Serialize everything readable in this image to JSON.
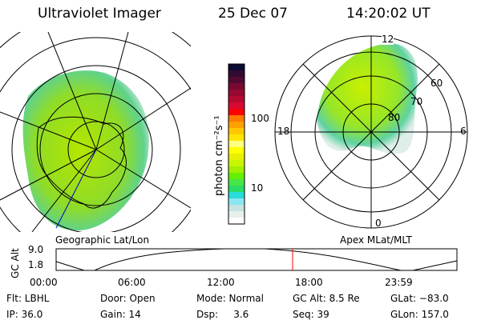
{
  "header": {
    "instrument": "Ultraviolet Imager",
    "date": "25 Dec 07",
    "time": "14:20:02 UT"
  },
  "colorbar": {
    "label": "photon cm⁻²s⁻¹",
    "ticks": [
      "100",
      "10"
    ],
    "colors": [
      "#0a0a32",
      "#320a32",
      "#500a32",
      "#780a32",
      "#960a32",
      "#b40a32",
      "#d70a32",
      "#ff0000",
      "#ff7800",
      "#ffa000",
      "#ffc800",
      "#ffe600",
      "#ffff80",
      "#ffff00",
      "#e6f000",
      "#c8f500",
      "#a0f000",
      "#64f000",
      "#46e646",
      "#28dc64",
      "#28dcdc",
      "#8ce6f0",
      "#c8e1e1",
      "#e6f0eb",
      "#ffffff"
    ]
  },
  "left_panel": {
    "caption": "Geographic Lat/Lon"
  },
  "right_panel": {
    "caption": "Apex MLat/MLT",
    "mlt_labels": [
      "12",
      "18",
      "6",
      "0"
    ],
    "lat_labels": [
      "60",
      "70",
      "80"
    ]
  },
  "timeline": {
    "ylabel": "GC Alt",
    "yticks": [
      "9.0",
      "1.8"
    ],
    "xticks": [
      "00:00",
      "06:00",
      "12:00",
      "18:00",
      "23:59"
    ],
    "current_time": "14:20:02",
    "marker_color": "#ff0000"
  },
  "info": {
    "row1": [
      "Flt: LBHL",
      "Door: Open",
      "Mode: Normal",
      "GC Alt: 8.5 Re",
      "GLat: −83.0"
    ],
    "row2": [
      "IP: 36.0",
      "Gain: 14",
      "Dsp:     3.6",
      "Seq: 39",
      "GLon: 157.0"
    ]
  }
}
